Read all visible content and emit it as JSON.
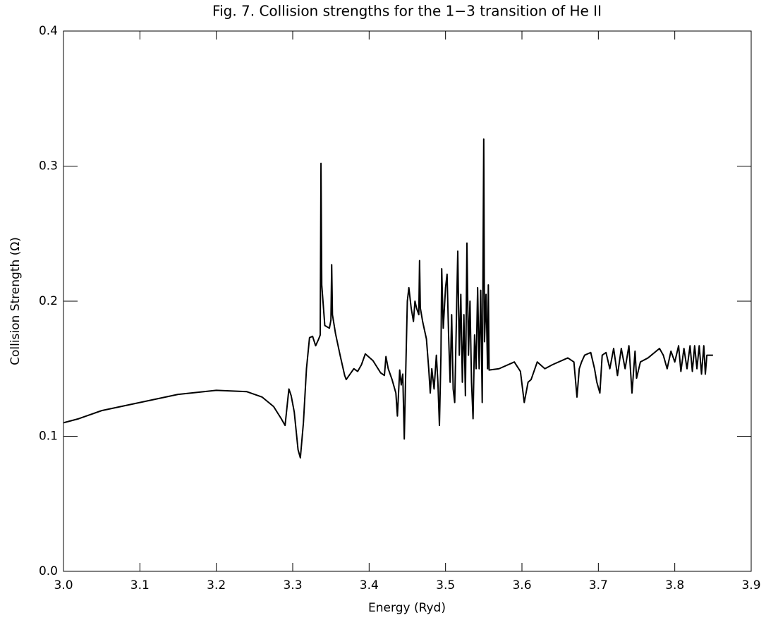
{
  "chart_data": {
    "type": "line",
    "title": "Fig. 7. Collision strengths for the 1−3 transition of He II",
    "xlabel": "Energy (Ryd)",
    "ylabel": "Collision Strength (Ω)",
    "color": "#000000",
    "xlim": [
      3.0,
      3.9
    ],
    "ylim": [
      0.0,
      0.4
    ],
    "xticks": [
      {
        "value": 3.0,
        "label": "3.0"
      },
      3.1,
      3.2,
      3.3,
      3.4,
      3.5,
      3.6,
      3.7,
      3.8,
      3.9
    ],
    "yticks": [
      {
        "value": 0.0,
        "label": "0.0"
      },
      0.1,
      0.2,
      0.3,
      0.4
    ],
    "x": [
      3.0,
      3.02,
      3.05,
      3.1,
      3.15,
      3.2,
      3.24,
      3.26,
      3.275,
      3.285,
      3.29,
      3.295,
      3.298,
      3.302,
      3.307,
      3.31,
      3.314,
      3.318,
      3.322,
      3.326,
      3.33,
      3.334,
      3.336,
      3.337,
      3.338,
      3.342,
      3.348,
      3.35,
      3.351,
      3.352,
      3.356,
      3.362,
      3.368,
      3.37,
      3.375,
      3.38,
      3.385,
      3.39,
      3.395,
      3.405,
      3.415,
      3.42,
      3.422,
      3.425,
      3.43,
      3.435,
      3.437,
      3.44,
      3.442,
      3.444,
      3.446,
      3.448,
      3.45,
      3.452,
      3.455,
      3.458,
      3.46,
      3.462,
      3.465,
      3.466,
      3.467,
      3.47,
      3.475,
      3.478,
      3.48,
      3.482,
      3.485,
      3.488,
      3.49,
      3.492,
      3.494,
      3.495,
      3.497,
      3.5,
      3.502,
      3.504,
      3.506,
      3.508,
      3.51,
      3.512,
      3.514,
      3.516,
      3.518,
      3.52,
      3.522,
      3.524,
      3.526,
      3.528,
      3.53,
      3.532,
      3.534,
      3.536,
      3.538,
      3.54,
      3.542,
      3.544,
      3.546,
      3.548,
      3.55,
      3.551,
      3.553,
      3.555,
      3.556,
      3.557,
      3.57,
      3.59,
      3.598,
      3.603,
      3.608,
      3.612,
      3.62,
      3.63,
      3.64,
      3.66,
      3.668,
      3.672,
      3.675,
      3.678,
      3.682,
      3.69,
      3.695,
      3.698,
      3.702,
      3.705,
      3.71,
      3.715,
      3.72,
      3.725,
      3.73,
      3.735,
      3.74,
      3.744,
      3.748,
      3.75,
      3.755,
      3.765,
      3.78,
      3.785,
      3.79,
      3.795,
      3.8,
      3.805,
      3.808,
      3.812,
      3.816,
      3.82,
      3.823,
      3.826,
      3.829,
      3.832,
      3.835,
      3.838,
      3.84,
      3.842,
      3.85
    ],
    "values": [
      0.11,
      0.113,
      0.119,
      0.125,
      0.131,
      0.134,
      0.133,
      0.129,
      0.122,
      0.113,
      0.108,
      0.135,
      0.13,
      0.118,
      0.09,
      0.084,
      0.11,
      0.15,
      0.173,
      0.174,
      0.167,
      0.172,
      0.175,
      0.302,
      0.212,
      0.182,
      0.18,
      0.186,
      0.227,
      0.19,
      0.176,
      0.16,
      0.145,
      0.142,
      0.146,
      0.15,
      0.148,
      0.153,
      0.161,
      0.156,
      0.147,
      0.145,
      0.159,
      0.15,
      0.142,
      0.132,
      0.115,
      0.149,
      0.138,
      0.146,
      0.098,
      0.15,
      0.2,
      0.21,
      0.195,
      0.185,
      0.2,
      0.195,
      0.19,
      0.23,
      0.195,
      0.185,
      0.172,
      0.15,
      0.132,
      0.15,
      0.135,
      0.16,
      0.14,
      0.108,
      0.16,
      0.224,
      0.18,
      0.21,
      0.22,
      0.175,
      0.14,
      0.19,
      0.135,
      0.125,
      0.18,
      0.237,
      0.16,
      0.205,
      0.14,
      0.19,
      0.13,
      0.243,
      0.16,
      0.2,
      0.14,
      0.113,
      0.175,
      0.15,
      0.21,
      0.15,
      0.208,
      0.125,
      0.32,
      0.17,
      0.205,
      0.15,
      0.212,
      0.149,
      0.15,
      0.155,
      0.148,
      0.125,
      0.14,
      0.142,
      0.155,
      0.15,
      0.153,
      0.158,
      0.155,
      0.129,
      0.15,
      0.155,
      0.16,
      0.162,
      0.15,
      0.14,
      0.132,
      0.16,
      0.162,
      0.15,
      0.165,
      0.145,
      0.165,
      0.15,
      0.167,
      0.132,
      0.163,
      0.143,
      0.155,
      0.158,
      0.165,
      0.16,
      0.15,
      0.163,
      0.155,
      0.167,
      0.148,
      0.165,
      0.15,
      0.167,
      0.148,
      0.167,
      0.15,
      0.167,
      0.146,
      0.167,
      0.146,
      0.16,
      0.16
    ]
  }
}
